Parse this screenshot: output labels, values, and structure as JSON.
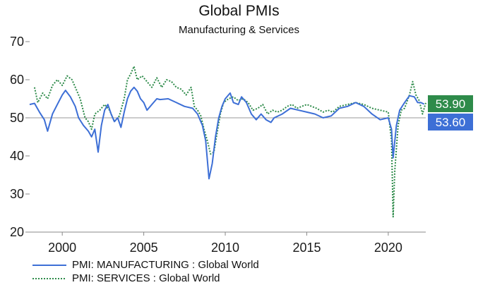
{
  "chart_data": {
    "type": "line",
    "title": "Global PMIs",
    "subtitle": "Manufacturing & Services",
    "ylim": [
      20,
      70
    ],
    "yticks": [
      20,
      30,
      40,
      50,
      60,
      70
    ],
    "xlim": [
      1998.0,
      2022.3
    ],
    "xticks": [
      2000,
      2005,
      2010,
      2015,
      2020
    ],
    "grid": false,
    "reference_line": 50,
    "legend_position": "bottom-left",
    "series": [
      {
        "name": "PMI: MANUFACTURING : Global World",
        "style": "solid",
        "color": "#3d6fd6",
        "end_value": "53.60",
        "points": [
          [
            1998.0,
            53.5
          ],
          [
            1998.3,
            53.8
          ],
          [
            1998.6,
            51.5
          ],
          [
            1998.9,
            49.5
          ],
          [
            1999.1,
            46.5
          ],
          [
            1999.4,
            51.0
          ],
          [
            1999.7,
            53.5
          ],
          [
            2000.0,
            56.0
          ],
          [
            2000.2,
            57.2
          ],
          [
            2000.5,
            55.5
          ],
          [
            2000.8,
            53.0
          ],
          [
            2001.0,
            50.0
          ],
          [
            2001.3,
            48.0
          ],
          [
            2001.6,
            46.5
          ],
          [
            2001.8,
            45.0
          ],
          [
            2002.0,
            47.0
          ],
          [
            2002.2,
            41.0
          ],
          [
            2002.4,
            48.0
          ],
          [
            2002.6,
            52.0
          ],
          [
            2002.8,
            53.5
          ],
          [
            2003.0,
            51.0
          ],
          [
            2003.2,
            49.0
          ],
          [
            2003.4,
            50.0
          ],
          [
            2003.6,
            47.5
          ],
          [
            2003.8,
            51.5
          ],
          [
            2004.0,
            55.0
          ],
          [
            2004.2,
            57.0
          ],
          [
            2004.4,
            58.0
          ],
          [
            2004.6,
            57.0
          ],
          [
            2004.8,
            55.0
          ],
          [
            2005.0,
            54.0
          ],
          [
            2005.2,
            52.0
          ],
          [
            2005.5,
            53.5
          ],
          [
            2005.8,
            55.0
          ],
          [
            2006.0,
            54.8
          ],
          [
            2006.5,
            55.0
          ],
          [
            2007.0,
            54.0
          ],
          [
            2007.5,
            53.0
          ],
          [
            2008.0,
            52.5
          ],
          [
            2008.3,
            51.0
          ],
          [
            2008.6,
            48.0
          ],
          [
            2008.8,
            44.0
          ],
          [
            2009.0,
            34.0
          ],
          [
            2009.2,
            38.0
          ],
          [
            2009.4,
            45.0
          ],
          [
            2009.6,
            50.0
          ],
          [
            2009.8,
            53.0
          ],
          [
            2010.0,
            55.0
          ],
          [
            2010.3,
            56.5
          ],
          [
            2010.5,
            54.0
          ],
          [
            2010.8,
            53.5
          ],
          [
            2011.0,
            55.5
          ],
          [
            2011.3,
            54.0
          ],
          [
            2011.6,
            51.0
          ],
          [
            2011.9,
            49.5
          ],
          [
            2012.2,
            51.0
          ],
          [
            2012.5,
            49.5
          ],
          [
            2012.8,
            48.8
          ],
          [
            2013.0,
            50.0
          ],
          [
            2013.5,
            51.0
          ],
          [
            2014.0,
            52.5
          ],
          [
            2014.5,
            52.0
          ],
          [
            2015.0,
            51.5
          ],
          [
            2015.5,
            51.0
          ],
          [
            2016.0,
            50.0
          ],
          [
            2016.5,
            50.5
          ],
          [
            2017.0,
            52.5
          ],
          [
            2017.5,
            53.0
          ],
          [
            2018.0,
            54.0
          ],
          [
            2018.5,
            53.0
          ],
          [
            2019.0,
            51.0
          ],
          [
            2019.5,
            49.5
          ],
          [
            2020.0,
            50.0
          ],
          [
            2020.2,
            47.0
          ],
          [
            2020.3,
            39.5
          ],
          [
            2020.5,
            48.0
          ],
          [
            2020.7,
            52.0
          ],
          [
            2021.0,
            54.0
          ],
          [
            2021.3,
            55.8
          ],
          [
            2021.6,
            55.5
          ],
          [
            2021.8,
            54.0
          ],
          [
            2022.0,
            54.0
          ],
          [
            2022.2,
            53.6
          ]
        ]
      },
      {
        "name": "PMI: SERVICES : Global World",
        "style": "dotted",
        "color": "#2e8b4a",
        "end_value": "53.90",
        "points": [
          [
            1998.3,
            58.0
          ],
          [
            1998.5,
            54.0
          ],
          [
            1998.8,
            56.5
          ],
          [
            1999.1,
            55.0
          ],
          [
            1999.4,
            58.5
          ],
          [
            1999.7,
            60.0
          ],
          [
            2000.0,
            58.5
          ],
          [
            2000.3,
            61.0
          ],
          [
            2000.6,
            60.0
          ],
          [
            2000.9,
            57.0
          ],
          [
            2001.1,
            55.0
          ],
          [
            2001.4,
            50.0
          ],
          [
            2001.6,
            49.0
          ],
          [
            2001.8,
            47.0
          ],
          [
            2002.0,
            51.0
          ],
          [
            2002.3,
            52.0
          ],
          [
            2002.6,
            53.5
          ],
          [
            2002.9,
            52.0
          ],
          [
            2003.2,
            49.0
          ],
          [
            2003.5,
            50.5
          ],
          [
            2003.8,
            55.0
          ],
          [
            2004.0,
            60.0
          ],
          [
            2004.2,
            61.5
          ],
          [
            2004.4,
            63.5
          ],
          [
            2004.6,
            60.0
          ],
          [
            2004.9,
            61.0
          ],
          [
            2005.2,
            59.5
          ],
          [
            2005.5,
            58.0
          ],
          [
            2005.8,
            60.5
          ],
          [
            2006.1,
            58.0
          ],
          [
            2006.4,
            60.0
          ],
          [
            2006.7,
            59.5
          ],
          [
            2007.0,
            58.0
          ],
          [
            2007.3,
            57.5
          ],
          [
            2007.6,
            56.0
          ],
          [
            2007.9,
            58.0
          ],
          [
            2008.1,
            53.0
          ],
          [
            2008.3,
            52.0
          ],
          [
            2008.5,
            50.5
          ],
          [
            2008.7,
            47.0
          ],
          [
            2008.9,
            44.0
          ],
          [
            2009.1,
            40.5
          ],
          [
            2009.3,
            41.0
          ],
          [
            2009.5,
            46.0
          ],
          [
            2009.7,
            51.0
          ],
          [
            2009.9,
            54.0
          ],
          [
            2010.2,
            55.0
          ],
          [
            2010.5,
            55.5
          ],
          [
            2010.8,
            54.5
          ],
          [
            2011.1,
            55.0
          ],
          [
            2011.4,
            54.0
          ],
          [
            2011.7,
            52.0
          ],
          [
            2012.0,
            52.5
          ],
          [
            2012.3,
            53.5
          ],
          [
            2012.6,
            51.0
          ],
          [
            2012.9,
            52.0
          ],
          [
            2013.2,
            51.5
          ],
          [
            2013.5,
            52.0
          ],
          [
            2013.8,
            53.0
          ],
          [
            2014.1,
            53.5
          ],
          [
            2014.4,
            52.5
          ],
          [
            2014.7,
            53.0
          ],
          [
            2015.0,
            53.5
          ],
          [
            2015.3,
            53.0
          ],
          [
            2015.6,
            52.5
          ],
          [
            2016.0,
            51.5
          ],
          [
            2016.3,
            52.0
          ],
          [
            2016.6,
            51.5
          ],
          [
            2017.0,
            53.0
          ],
          [
            2017.5,
            53.5
          ],
          [
            2018.0,
            54.0
          ],
          [
            2018.5,
            53.5
          ],
          [
            2019.0,
            52.5
          ],
          [
            2019.5,
            52.0
          ],
          [
            2020.0,
            51.5
          ],
          [
            2020.2,
            44.0
          ],
          [
            2020.3,
            24.0
          ],
          [
            2020.4,
            36.0
          ],
          [
            2020.6,
            48.0
          ],
          [
            2020.8,
            52.0
          ],
          [
            2021.0,
            52.5
          ],
          [
            2021.3,
            56.0
          ],
          [
            2021.5,
            59.5
          ],
          [
            2021.7,
            56.0
          ],
          [
            2021.9,
            54.5
          ],
          [
            2022.1,
            51.0
          ],
          [
            2022.3,
            53.9
          ]
        ]
      }
    ]
  },
  "legend": {
    "manufacturing_label": "PMI: MANUFACTURING : Global World",
    "services_label": "PMI: SERVICES : Global World"
  }
}
